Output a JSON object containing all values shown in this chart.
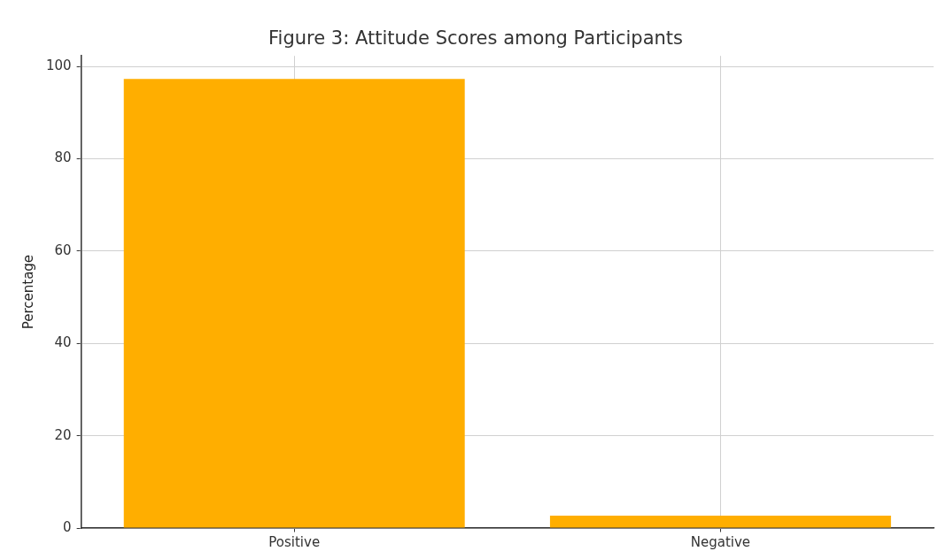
{
  "chart_data": {
    "type": "bar",
    "title": "Figure 3: Attitude Scores among Participants",
    "ylabel": "Percentage",
    "categories": [
      "Positive",
      "Negative"
    ],
    "values": [
      97.3,
      2.7
    ],
    "color": "#ffae00",
    "ylim": [
      0,
      102.3
    ],
    "yticks": [
      0,
      20,
      40,
      60,
      80,
      100
    ],
    "grid": true
  }
}
